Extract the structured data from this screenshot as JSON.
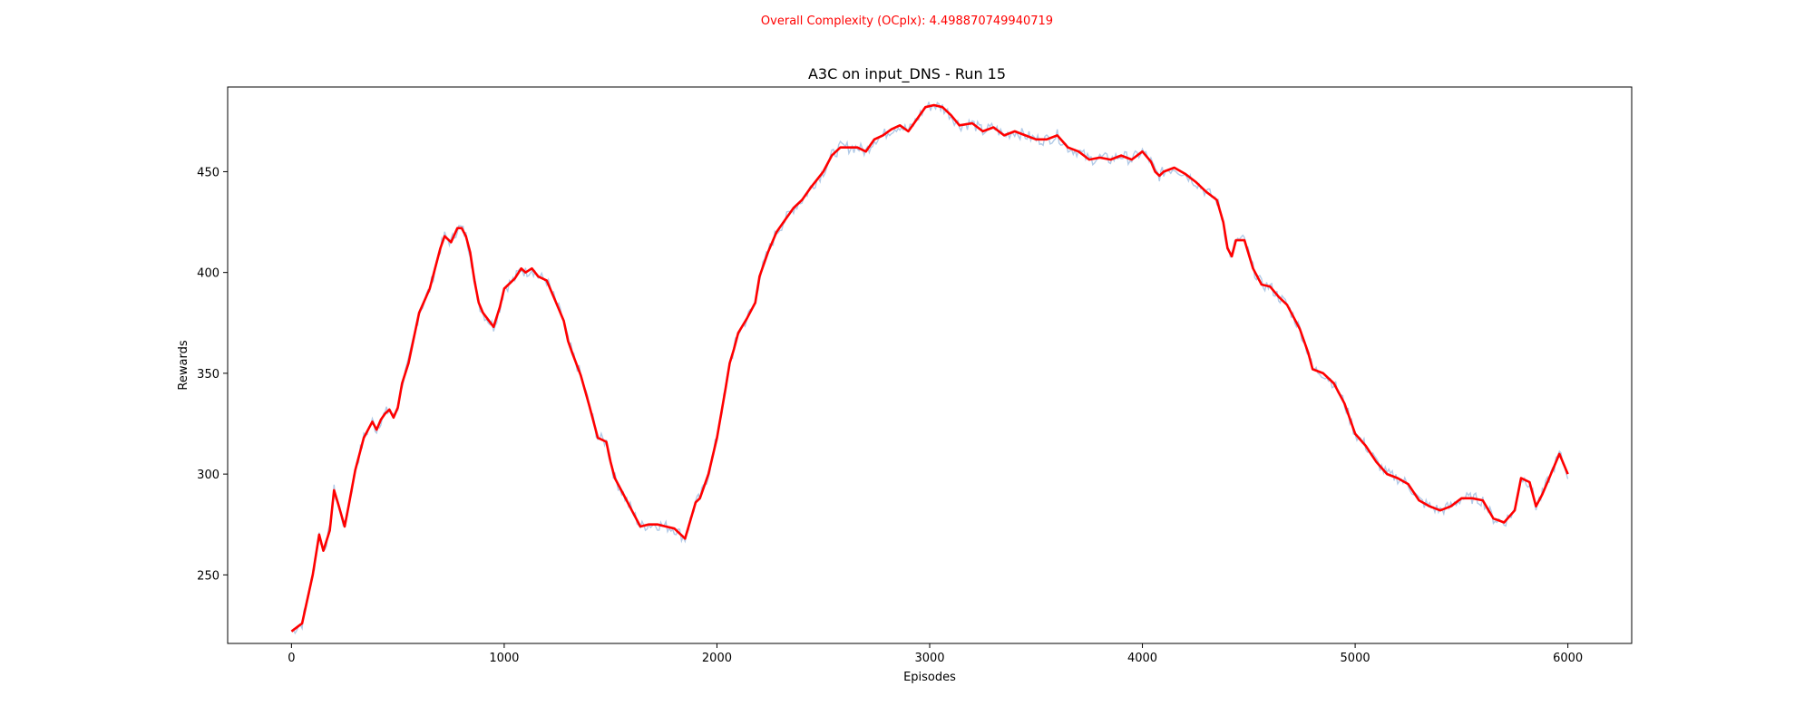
{
  "figure": {
    "suptitle": "Overall Complexity (OCplx): 4.498870749940719",
    "suptitle_color": "#ff0000"
  },
  "chart_data": {
    "type": "line",
    "title": "A3C on input_DNS - Run 15",
    "xlabel": "Episodes",
    "ylabel": "Rewards",
    "xlim": [
      -300,
      6300
    ],
    "ylim": [
      216,
      492
    ],
    "xticks": [
      0,
      1000,
      2000,
      3000,
      4000,
      5000,
      6000
    ],
    "yticks": [
      250,
      300,
      350,
      400,
      450
    ],
    "grid": false,
    "legend": "none",
    "series": [
      {
        "role": "smoothed",
        "color": "#ff0000",
        "x": [
          0,
          50,
          100,
          130,
          150,
          180,
          200,
          220,
          250,
          270,
          300,
          340,
          380,
          400,
          420,
          440,
          460,
          480,
          500,
          520,
          550,
          580,
          600,
          650,
          700,
          720,
          750,
          780,
          800,
          820,
          840,
          860,
          880,
          900,
          950,
          980,
          1000,
          1050,
          1080,
          1100,
          1130,
          1160,
          1200,
          1240,
          1280,
          1300,
          1320,
          1360,
          1400,
          1440,
          1480,
          1500,
          1520,
          1560,
          1600,
          1640,
          1680,
          1720,
          1760,
          1800,
          1850,
          1900,
          1920,
          1960,
          2000,
          2040,
          2060,
          2080,
          2100,
          2140,
          2180,
          2200,
          2240,
          2280,
          2320,
          2360,
          2400,
          2440,
          2500,
          2540,
          2580,
          2620,
          2660,
          2700,
          2740,
          2780,
          2820,
          2860,
          2900,
          2940,
          2980,
          3020,
          3060,
          3100,
          3140,
          3200,
          3250,
          3300,
          3350,
          3400,
          3450,
          3500,
          3550,
          3600,
          3650,
          3700,
          3750,
          3800,
          3850,
          3900,
          3950,
          4000,
          4040,
          4060,
          4080,
          4100,
          4150,
          4200,
          4250,
          4300,
          4350,
          4380,
          4400,
          4420,
          4440,
          4480,
          4520,
          4560,
          4600,
          4640,
          4680,
          4700,
          4740,
          4780,
          4800,
          4850,
          4900,
          4950,
          5000,
          5050,
          5100,
          5150,
          5200,
          5250,
          5300,
          5350,
          5400,
          5450,
          5500,
          5550,
          5600,
          5650,
          5700,
          5750,
          5780,
          5820,
          5850,
          5880,
          5920,
          5960,
          6000
        ],
        "y": [
          222,
          226,
          250,
          270,
          262,
          272,
          292,
          285,
          274,
          285,
          302,
          318,
          326,
          322,
          327,
          330,
          332,
          328,
          333,
          345,
          355,
          370,
          380,
          392,
          412,
          418,
          415,
          422,
          422,
          418,
          410,
          396,
          385,
          380,
          373,
          383,
          392,
          397,
          402,
          400,
          402,
          398,
          396,
          386,
          376,
          366,
          360,
          349,
          334,
          318,
          316,
          306,
          298,
          290,
          282,
          274,
          275,
          275,
          274,
          273,
          268,
          286,
          288,
          300,
          318,
          342,
          355,
          362,
          370,
          377,
          385,
          398,
          410,
          420,
          426,
          432,
          436,
          442,
          450,
          458,
          462,
          462,
          462,
          460,
          466,
          468,
          471,
          473,
          470,
          476,
          482,
          483,
          482,
          478,
          473,
          474,
          470,
          472,
          468,
          470,
          468,
          466,
          466,
          468,
          462,
          460,
          456,
          457,
          456,
          458,
          456,
          460,
          455,
          450,
          448,
          450,
          452,
          449,
          445,
          440,
          436,
          425,
          412,
          408,
          416,
          416,
          402,
          394,
          393,
          388,
          384,
          380,
          372,
          360,
          352,
          350,
          345,
          335,
          320,
          314,
          306,
          300,
          298,
          295,
          287,
          284,
          282,
          284,
          288,
          288,
          287,
          278,
          276,
          282,
          298,
          296,
          284,
          290,
          300,
          310,
          300
        ]
      },
      {
        "role": "raw",
        "color": "#a9c4e4",
        "note_free": true
      }
    ]
  }
}
